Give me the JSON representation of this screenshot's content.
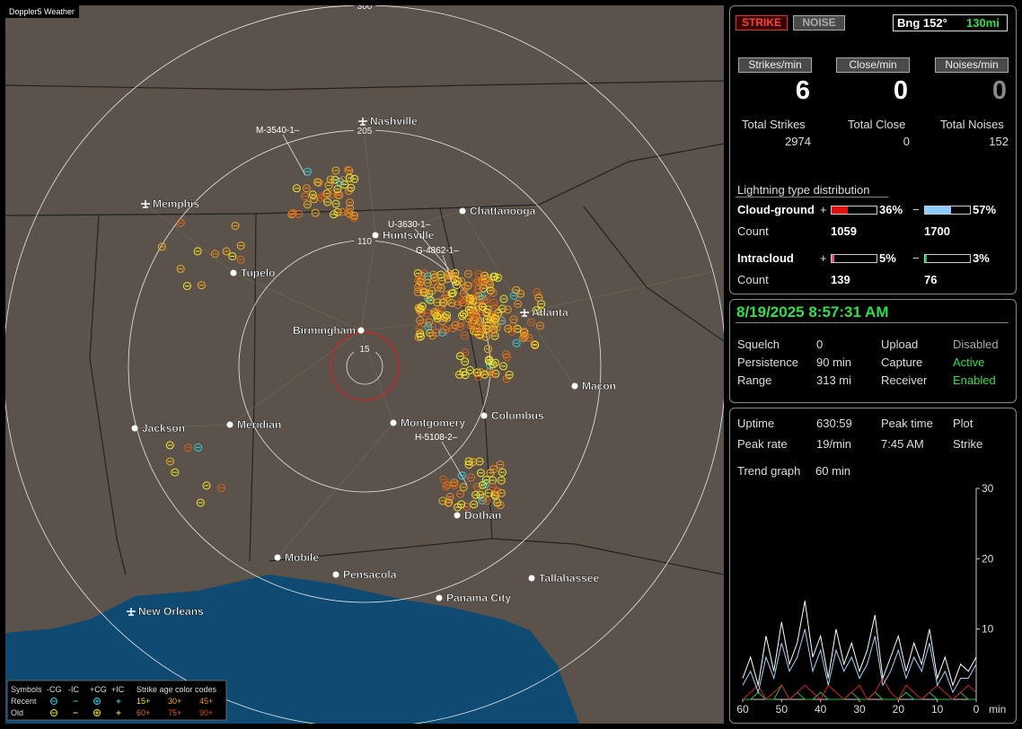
{
  "app_title": "Doppler5 Weather",
  "map": {
    "range_rings": [
      300,
      205,
      110,
      15
    ],
    "cities": [
      "Nashville",
      "Memphis",
      "Chattanooga",
      "Huntsville",
      "Tupelo",
      "Birmingham",
      "Atlanta",
      "Macon",
      "Jackson",
      "Meridian",
      "Montgomery",
      "Columbus",
      "Dothan",
      "Mobile",
      "Pensacola",
      "Tallahassee",
      "Panama City",
      "New Orleans"
    ],
    "storm_labels": [
      "M-3540-1–",
      "U-3630-1–",
      "G-4862-1–",
      "H-5108-2–"
    ],
    "legend": {
      "symbols": "Symbols",
      "headers": [
        "-CG",
        "-IC",
        "+CG",
        "+IC"
      ],
      "age_title": "Strike age color codes",
      "rows": [
        {
          "label": "Recent",
          "ages": [
            "15+",
            "30+",
            "45+"
          ]
        },
        {
          "label": "Old",
          "ages": [
            "60+",
            "75+",
            "90+"
          ]
        }
      ]
    }
  },
  "status": {
    "strike_button": "STRIKE",
    "noise_button": "NOISE",
    "bearing": "Bng 152°",
    "distance": "130mi"
  },
  "rates": [
    {
      "label": "Strikes/min",
      "value": 6,
      "total_label": "Total Strikes",
      "total": 2974
    },
    {
      "label": "Close/min",
      "value": 0,
      "total_label": "Total Close",
      "total": 0
    },
    {
      "label": "Noises/min",
      "value": 0,
      "total_label": "Total Noises",
      "total": 152
    }
  ],
  "distribution": {
    "title": "Lightning type distribution",
    "rows": [
      {
        "label": "Cloud-ground",
        "pos_sign": "+",
        "pos": {
          "value": 36,
          "label": "36%"
        },
        "neg_sign": "−",
        "neg": {
          "value": 57,
          "label": "57%"
        },
        "count_label": "Count",
        "pos_count": 1059,
        "neg_count": 1700
      },
      {
        "label": "Intracloud",
        "pos_sign": "+",
        "pos": {
          "value": 5,
          "label": "5%"
        },
        "neg_sign": "−",
        "neg": {
          "value": 3,
          "label": "3%"
        },
        "count_label": "Count",
        "pos_count": 139,
        "neg_count": 76
      }
    ]
  },
  "settings": {
    "datetime": "8/19/2025 8:57:31 AM",
    "rows": [
      [
        "Squelch",
        "0",
        "Upload",
        "Disabled"
      ],
      [
        "Persistence",
        "90 min",
        "Capture",
        "Active"
      ],
      [
        "Range",
        "313 mi",
        "Receiver",
        "Enabled"
      ]
    ]
  },
  "stats": {
    "rows": [
      [
        "Uptime",
        "630:59",
        "Peak time",
        "Plot"
      ],
      [
        "Peak rate",
        "19/min",
        "7:45 AM",
        "Strike"
      ]
    ],
    "trend_label": "Trend graph",
    "trend_window": "60 min"
  },
  "trend": {
    "type": "line",
    "xlim": [
      60,
      0
    ],
    "ylim": [
      0,
      30
    ],
    "yticks": [
      10,
      20,
      30
    ],
    "xticks": [
      60,
      50,
      40,
      30,
      20,
      10,
      0
    ],
    "x_unit": "min",
    "x": [
      60,
      58,
      56,
      54,
      52,
      50,
      48,
      46,
      44,
      42,
      40,
      38,
      36,
      34,
      32,
      30,
      28,
      26,
      24,
      22,
      20,
      18,
      16,
      14,
      12,
      10,
      8,
      6,
      4,
      2,
      0
    ],
    "series": [
      {
        "color": "#ffffff",
        "values": [
          3,
          6,
          2,
          9,
          4,
          11,
          5,
          8,
          14,
          6,
          9,
          3,
          10,
          5,
          8,
          4,
          7,
          12,
          3,
          6,
          9,
          4,
          8,
          5,
          10,
          3,
          6,
          2,
          5,
          4,
          6
        ]
      },
      {
        "color": "#9fd3ff",
        "values": [
          2,
          4,
          1,
          6,
          3,
          8,
          4,
          6,
          10,
          4,
          7,
          2,
          7,
          4,
          6,
          3,
          5,
          9,
          2,
          4,
          7,
          3,
          6,
          4,
          8,
          2,
          4,
          1,
          3,
          3,
          5
        ]
      },
      {
        "color": "#e02020",
        "values": [
          0,
          1,
          2,
          0,
          1,
          2,
          0,
          1,
          2,
          1,
          0,
          2,
          1,
          0,
          1,
          2,
          0,
          1,
          3,
          1,
          0,
          2,
          1,
          0,
          1,
          2,
          1,
          0,
          1,
          2,
          1
        ]
      },
      {
        "color": "#20c040",
        "values": [
          0,
          0,
          1,
          0,
          0,
          2,
          0,
          1,
          0,
          0,
          1,
          0,
          0,
          0,
          1,
          0,
          0,
          1,
          0,
          0,
          0,
          1,
          0,
          0,
          1,
          0,
          0,
          0,
          1,
          0,
          0
        ]
      }
    ]
  }
}
